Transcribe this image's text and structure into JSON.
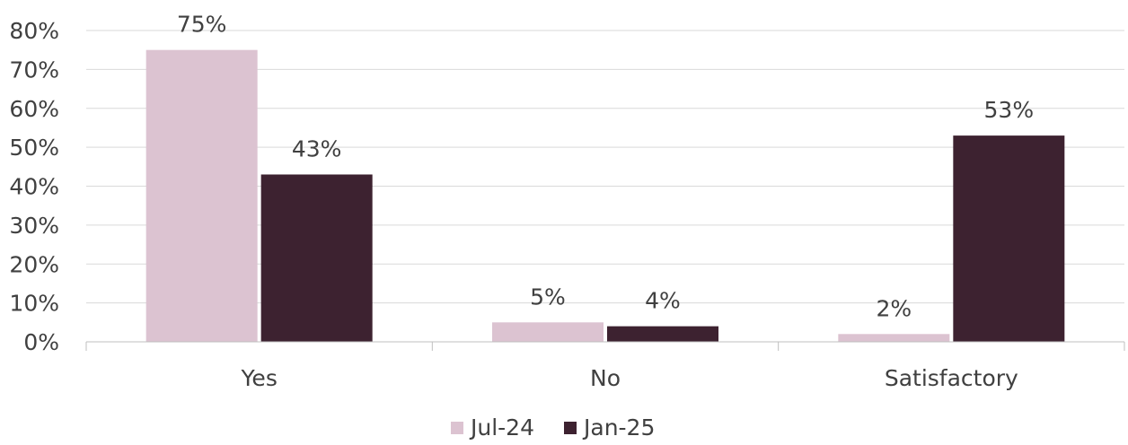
{
  "chart_data": {
    "type": "bar",
    "categories": [
      "Yes",
      "No",
      "Satisfactory"
    ],
    "series": [
      {
        "name": "Jul-24",
        "values": [
          75,
          5,
          2
        ],
        "labels": [
          "75%",
          "5%",
          "2%"
        ],
        "color": "#dcc3d1"
      },
      {
        "name": "Jan-25",
        "values": [
          43,
          4,
          53
        ],
        "labels": [
          "43%",
          "4%",
          "53%"
        ],
        "color": "#3d2230"
      }
    ],
    "y_ticks": [
      "0%",
      "10%",
      "20%",
      "30%",
      "40%",
      "50%",
      "60%",
      "70%",
      "80%"
    ],
    "ylim": [
      0,
      80
    ],
    "grid": true,
    "legend_position": "bottom",
    "title": "",
    "xlabel": "",
    "ylabel": ""
  }
}
